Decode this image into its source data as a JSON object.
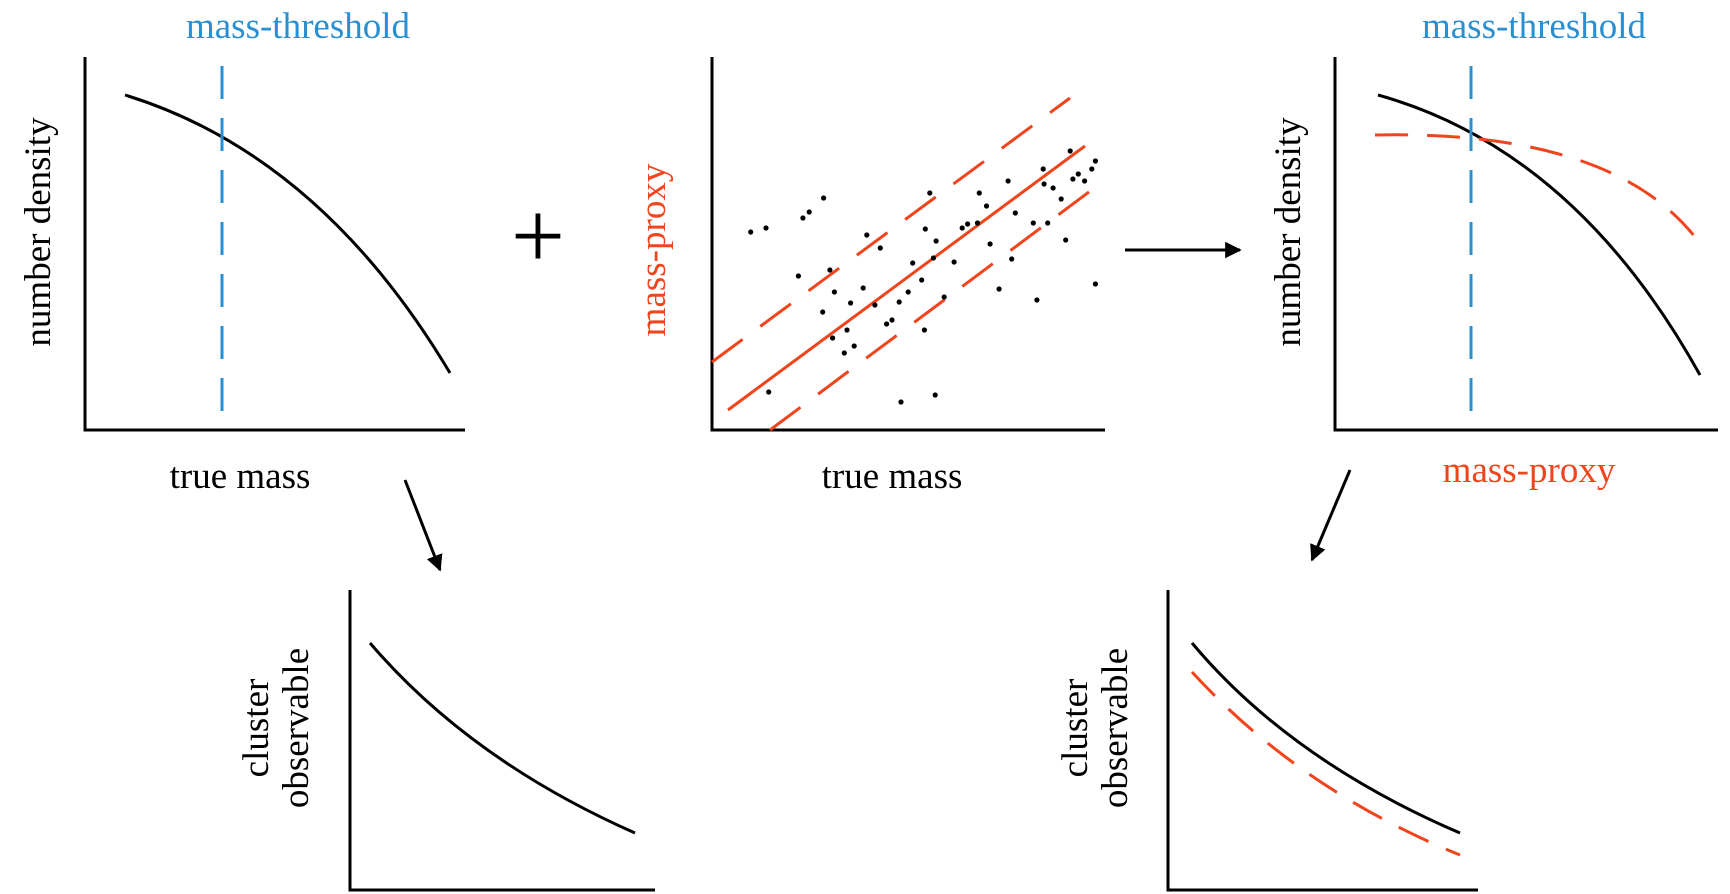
{
  "labels": {
    "threshold_left": "mass-threshold",
    "threshold_right": "mass-threshold",
    "panel1_ylabel": "number density",
    "panel1_xlabel": "true mass",
    "panel2_ylabel": "mass-proxy",
    "panel2_xlabel": "true mass",
    "panel3_ylabel": "number density",
    "panel3_xlabel": "mass-proxy",
    "panel4_ylabel_line1": "cluster",
    "panel4_ylabel_line2": "observable",
    "panel5_ylabel_line1": "cluster",
    "panel5_ylabel_line2": "observable",
    "plus_symbol": "+"
  },
  "colors": {
    "axis": "#000000",
    "curve": "#000000",
    "threshold": "#2a8fd0",
    "proxy": "#f0441c",
    "text": "#000000"
  },
  "icons": {
    "plus": "plus-sign",
    "arrow_right": "arrow-right-icon",
    "arrow_down_right": "arrow-down-right-icon",
    "arrow_down_left": "arrow-down-left-icon"
  }
}
